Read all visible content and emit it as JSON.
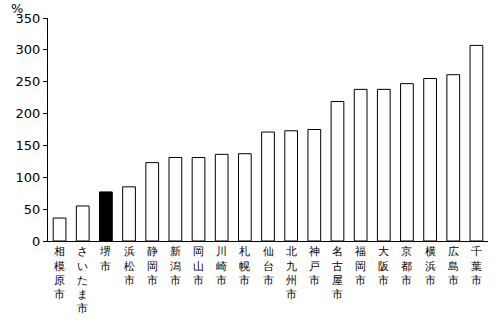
{
  "chart_data": {
    "type": "bar",
    "ylabel": "%",
    "categories": [
      "相模原市",
      "さいたま市",
      "堺市",
      "浜松市",
      "静岡市",
      "新潟市",
      "岡山市",
      "川崎市",
      "札幌市",
      "仙台市",
      "北九州市",
      "神戸市",
      "名古屋市",
      "福岡市",
      "大阪市",
      "京都市",
      "横浜市",
      "広島市",
      "千葉市"
    ],
    "values": [
      36,
      55,
      77,
      85,
      123,
      131,
      131,
      136,
      137,
      171,
      173,
      175,
      219,
      238,
      238,
      247,
      255,
      261,
      307
    ],
    "colors": [
      "#ffffff",
      "#ffffff",
      "#000000",
      "#ffffff",
      "#ffffff",
      "#ffffff",
      "#ffffff",
      "#ffffff",
      "#ffffff",
      "#ffffff",
      "#ffffff",
      "#ffffff",
      "#ffffff",
      "#ffffff",
      "#ffffff",
      "#ffffff",
      "#ffffff",
      "#ffffff",
      "#ffffff"
    ],
    "ylim": [
      0,
      350
    ],
    "yticks": [
      0,
      50,
      100,
      150,
      200,
      250,
      300,
      350
    ],
    "grid": false
  }
}
